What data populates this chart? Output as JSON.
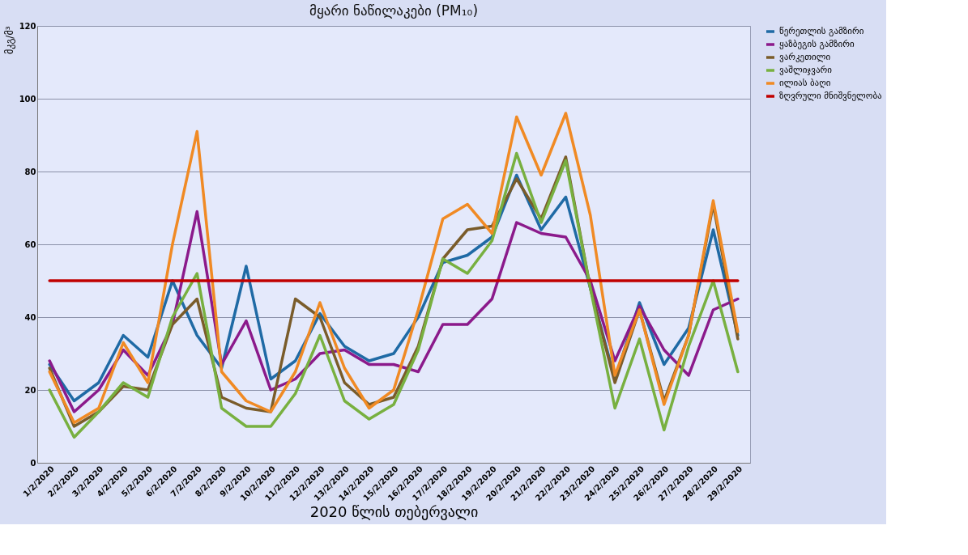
{
  "chart_data": {
    "type": "line",
    "title": "მყარი ნაწილაკები (PM₁₀)",
    "xlabel": "2020 წლის თებერვალი",
    "ylabel": "მკგ/მ³",
    "categories": [
      "1/2/2020",
      "2/2/2020",
      "3/2/2020",
      "4/2/2020",
      "5/2/2020",
      "6/2/2020",
      "7/2/2020",
      "8/2/2020",
      "9/2/2020",
      "10/2/2020",
      "11/2/2020",
      "12/2/2020",
      "13/2/2020",
      "14/2/2020",
      "15/2/2020",
      "16/2/2020",
      "17/2/2020",
      "18/2/2020",
      "19/2/2020",
      "20/2/2020",
      "21/2/2020",
      "22/2/2020",
      "23/2/2020",
      "24/2/2020",
      "25/2/2020",
      "26/2/2020",
      "27/2/2020",
      "28/2/2020",
      "29/2/2020"
    ],
    "series": [
      {
        "name": "წერეთლის გამზირი",
        "color": "#1f6aa5",
        "values": [
          27,
          17,
          22,
          35,
          29,
          50,
          35,
          26,
          54,
          23,
          28,
          41,
          32,
          28,
          30,
          40,
          55,
          57,
          62,
          79,
          64,
          73,
          48,
          23,
          44,
          27,
          37,
          64,
          35
        ]
      },
      {
        "name": "ყაზბეგის გამზირი",
        "color": "#8b1a8b",
        "values": [
          28,
          14,
          20,
          31,
          24,
          38,
          69,
          27,
          39,
          20,
          23,
          30,
          31,
          27,
          27,
          25,
          38,
          38,
          45,
          66,
          63,
          62,
          50,
          28,
          43,
          31,
          24,
          42,
          45
        ]
      },
      {
        "name": "ვარკეთილი",
        "color": "#7a5c2a",
        "values": [
          26,
          10,
          14,
          21,
          20,
          38,
          45,
          18,
          15,
          14,
          45,
          40,
          22,
          16,
          18,
          32,
          56,
          64,
          65,
          78,
          67,
          84,
          48,
          22,
          42,
          17,
          35,
          71,
          34
        ]
      },
      {
        "name": "ვაშლიჯვარი",
        "color": "#78b040",
        "values": [
          20,
          7,
          14,
          22,
          18,
          40,
          52,
          15,
          10,
          10,
          19,
          35,
          17,
          12,
          16,
          31,
          56,
          52,
          61,
          85,
          66,
          83,
          48,
          15,
          34,
          9,
          32,
          50,
          25
        ]
      },
      {
        "name": "ილიას ბაღი",
        "color": "#f08a24",
        "values": [
          25,
          11,
          15,
          33,
          22,
          60,
          91,
          25,
          17,
          14,
          25,
          44,
          26,
          15,
          20,
          42,
          67,
          71,
          63,
          95,
          79,
          96,
          68,
          24,
          42,
          16,
          35,
          72,
          36
        ]
      },
      {
        "name": "ზღვრული მნიშვნელობა",
        "color": "#c00000",
        "values": [
          50,
          50,
          50,
          50,
          50,
          50,
          50,
          50,
          50,
          50,
          50,
          50,
          50,
          50,
          50,
          50,
          50,
          50,
          50,
          50,
          50,
          50,
          50,
          50,
          50,
          50,
          50,
          50,
          50
        ]
      }
    ],
    "ylim": [
      0,
      120
    ],
    "yticks": [
      0,
      20,
      40,
      60,
      80,
      100,
      120
    ],
    "grid": "y",
    "legend": "right",
    "marker": "none",
    "line_style": "solid"
  }
}
